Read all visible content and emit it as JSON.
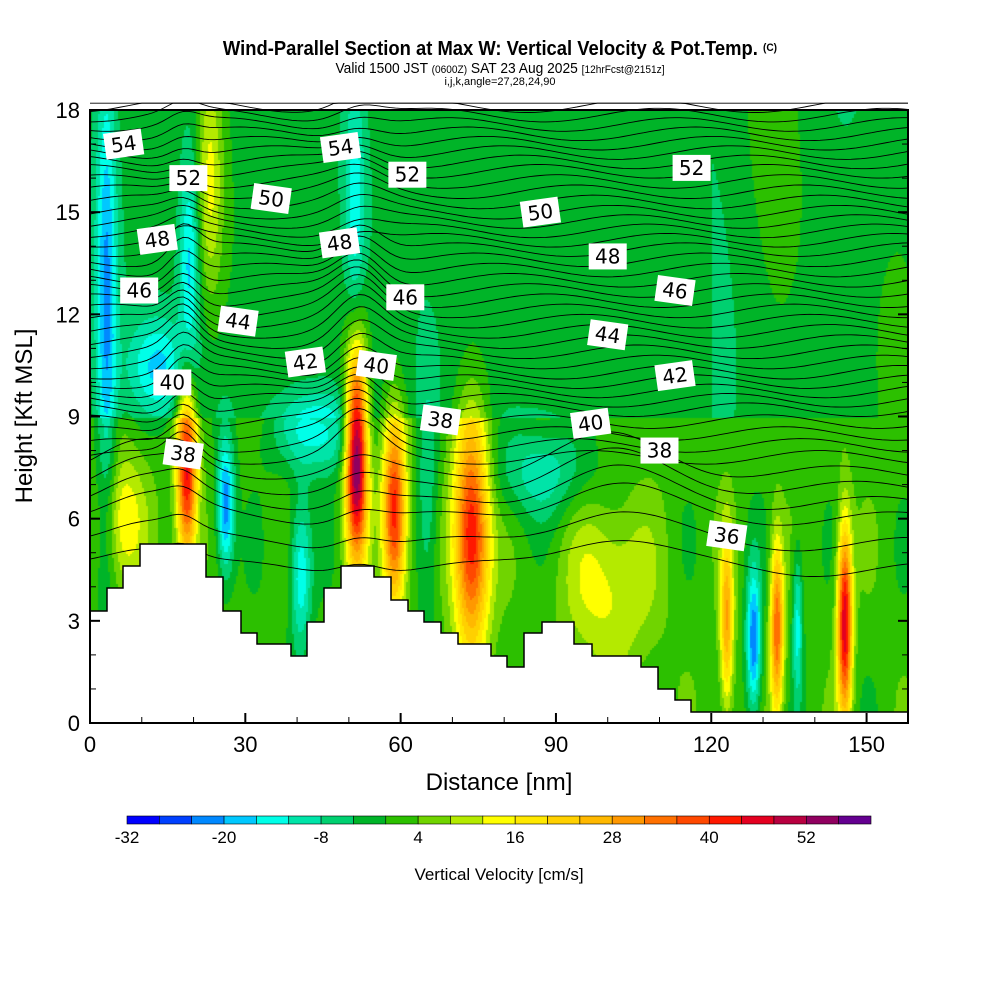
{
  "title": {
    "main": "Wind-Parallel Section at Max W: Vertical Velocity & Pot.Temp.",
    "copyright": "(C)",
    "valid_prefix": "Valid 1500 JST",
    "utc": "(0600Z)",
    "valid_date": "SAT 23 Aug 2025",
    "forecast": "[12hrFcst@2151z]",
    "indices": "i,j,k,angle=27,28,24,90"
  },
  "chart_data": {
    "type": "heatmap",
    "title": "Wind-Parallel Section at Max W: Vertical Velocity & Pot.Temp.",
    "xlabel": "Distance [nm]",
    "ylabel": "Height [Kft MSL]",
    "xlim": [
      0,
      158
    ],
    "ylim": [
      0,
      18
    ],
    "x_ticks": [
      "0",
      "30",
      "60",
      "90",
      "120",
      "150"
    ],
    "y_ticks": [
      "0",
      "3",
      "6",
      "9",
      "12",
      "15",
      "18"
    ],
    "colorbar": {
      "label": "Vertical Velocity [cm/s]",
      "levels_start": -32,
      "levels_step": 4,
      "tick_labels": [
        "-32",
        "-20",
        "-8",
        "4",
        "16",
        "28",
        "40",
        "52"
      ],
      "colors": [
        "#0000ff",
        "#0040ff",
        "#0088ff",
        "#00c8ff",
        "#00ffe8",
        "#00e4a8",
        "#00d070",
        "#00b428",
        "#2cc000",
        "#70d400",
        "#b4ea00",
        "#ffff00",
        "#ffe800",
        "#ffd000",
        "#ffb800",
        "#ff9800",
        "#ff7000",
        "#ff4800",
        "#ff1800",
        "#e40020",
        "#b80040",
        "#900060",
        "#640090"
      ]
    },
    "vertical_velocity_cores": [
      {
        "x_nm": 18.5,
        "z_kft": 7.4,
        "w": 44,
        "sx": 1.4,
        "sz": 2.0
      },
      {
        "x_nm": 26,
        "z_kft": 6.4,
        "w": -26,
        "sx": 1.2,
        "sz": 1.4
      },
      {
        "x_nm": 51.3,
        "z_kft": 8.0,
        "w": 58,
        "sx": 1.5,
        "sz": 2.2
      },
      {
        "x_nm": 58.6,
        "z_kft": 6.2,
        "w": 42,
        "sx": 1.6,
        "sz": 2.0
      },
      {
        "x_nm": 73.5,
        "z_kft": 5.6,
        "w": 44,
        "sx": 2.4,
        "sz": 2.4
      },
      {
        "x_nm": 40.5,
        "z_kft": 4.4,
        "w": -18,
        "sx": 1.5,
        "sz": 1.6
      },
      {
        "x_nm": 65,
        "z_kft": 6.5,
        "w": -10,
        "sx": 1.5,
        "sz": 2.5
      },
      {
        "x_nm": 122.8,
        "z_kft": 3.0,
        "w": 26,
        "sx": 0.9,
        "sz": 1.8
      },
      {
        "x_nm": 128,
        "z_kft": 2.4,
        "w": -26,
        "sx": 1.0,
        "sz": 1.5
      },
      {
        "x_nm": 132.5,
        "z_kft": 2.8,
        "w": 34,
        "sx": 0.9,
        "sz": 1.8
      },
      {
        "x_nm": 136.5,
        "z_kft": 3.0,
        "w": -16,
        "sx": 0.7,
        "sz": 1.6
      },
      {
        "x_nm": 145.6,
        "z_kft": 3.0,
        "w": 46,
        "sx": 1.0,
        "sz": 2.0
      },
      {
        "x_nm": 6,
        "z_kft": 6.0,
        "w": 14,
        "sx": 3.0,
        "sz": 1.4
      },
      {
        "x_nm": 3,
        "z_kft": 12.5,
        "w": -18,
        "sx": 1.4,
        "sz": 5.0
      },
      {
        "x_nm": 19,
        "z_kft": 13.5,
        "w": -16,
        "sx": 1.4,
        "sz": 2.5
      },
      {
        "x_nm": 23,
        "z_kft": 16,
        "w": 14,
        "sx": 1.8,
        "sz": 2.5
      },
      {
        "x_nm": 51,
        "z_kft": 15,
        "w": -12,
        "sx": 1.3,
        "sz": 2.8
      },
      {
        "x_nm": 44,
        "z_kft": 8.6,
        "w": -16,
        "sx": 6,
        "sz": 0.9
      },
      {
        "x_nm": 87,
        "z_kft": 7.4,
        "w": -12,
        "sx": 7,
        "sz": 1.0
      },
      {
        "x_nm": 100,
        "z_kft": 4.0,
        "w": 12,
        "sx": 6,
        "sz": 1.8
      },
      {
        "x_nm": 13,
        "z_kft": 10.5,
        "w": -14,
        "sx": 4,
        "sz": 1.0
      }
    ],
    "contour_variable": "Potential Temperature",
    "contour_labels": [
      {
        "value": "54",
        "x_nm": 6.5,
        "z_kft": 17.0
      },
      {
        "value": "52",
        "x_nm": 19,
        "z_kft": 16.0
      },
      {
        "value": "50",
        "x_nm": 35,
        "z_kft": 15.4
      },
      {
        "value": "48",
        "x_nm": 13,
        "z_kft": 14.2
      },
      {
        "value": "46",
        "x_nm": 9.5,
        "z_kft": 12.7
      },
      {
        "value": "44",
        "x_nm": 28.6,
        "z_kft": 11.8
      },
      {
        "value": "42",
        "x_nm": 41.6,
        "z_kft": 10.6
      },
      {
        "value": "40",
        "x_nm": 15.9,
        "z_kft": 10.0
      },
      {
        "value": "38",
        "x_nm": 18,
        "z_kft": 7.9
      },
      {
        "value": "54",
        "x_nm": 48.4,
        "z_kft": 16.9
      },
      {
        "value": "52",
        "x_nm": 61.3,
        "z_kft": 16.1
      },
      {
        "value": "40",
        "x_nm": 55.3,
        "z_kft": 10.5
      },
      {
        "value": "48",
        "x_nm": 48.2,
        "z_kft": 14.1
      },
      {
        "value": "46",
        "x_nm": 60.9,
        "z_kft": 12.5
      },
      {
        "value": "38",
        "x_nm": 67.7,
        "z_kft": 8.9
      },
      {
        "value": "50",
        "x_nm": 87,
        "z_kft": 15.0
      },
      {
        "value": "48",
        "x_nm": 100,
        "z_kft": 13.7
      },
      {
        "value": "44",
        "x_nm": 100,
        "z_kft": 11.4
      },
      {
        "value": "40",
        "x_nm": 96.7,
        "z_kft": 8.8
      },
      {
        "value": "52",
        "x_nm": 116.2,
        "z_kft": 16.3
      },
      {
        "value": "46",
        "x_nm": 113,
        "z_kft": 12.7
      },
      {
        "value": "42",
        "x_nm": 113,
        "z_kft": 10.2
      },
      {
        "value": "38",
        "x_nm": 110,
        "z_kft": 8.0
      },
      {
        "value": "36",
        "x_nm": 123,
        "z_kft": 5.5
      }
    ]
  }
}
